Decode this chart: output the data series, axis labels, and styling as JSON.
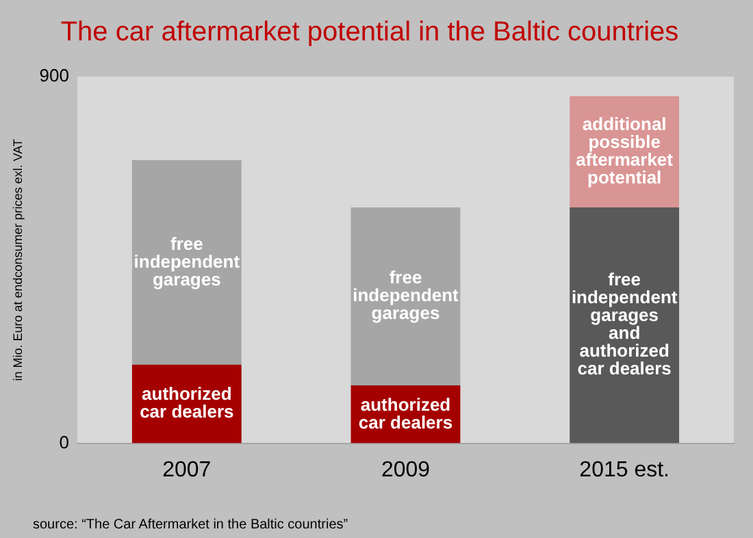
{
  "chart_data": {
    "type": "bar",
    "title": "The car aftermarket potential in the Baltic countries",
    "ylabel": "in Mio. Euro at endconsumer prices exl. VAT",
    "categories": [
      "2007",
      "2009",
      "2015 est."
    ],
    "stacked": true,
    "series": [
      {
        "name": "authorized car dealers",
        "color": "#a50000",
        "values": [
          193,
          142,
          null
        ]
      },
      {
        "name": "free independent garages",
        "color": "#a6a6a6",
        "values": [
          502,
          437,
          null
        ]
      },
      {
        "name": "free independent garages and authorized car dealers",
        "color": "#595959",
        "values": [
          null,
          null,
          579
        ]
      },
      {
        "name": "additional possible aftermarket potential",
        "color": "#d99594",
        "values": [
          null,
          null,
          273
        ]
      }
    ],
    "ylim": [
      0,
      900
    ],
    "yticks": [
      0,
      900
    ],
    "grid": false,
    "legend": false,
    "annotations": [
      "source: “The Car Aftermarket in the Baltic countries”"
    ]
  }
}
